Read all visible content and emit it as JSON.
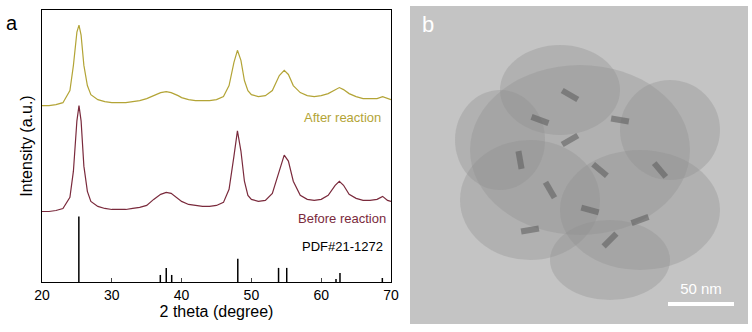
{
  "chart_data": {
    "type": "line",
    "panel": "a",
    "xlabel": "2 theta (degree)",
    "ylabel": "Intensity (a.u.)",
    "xlim": [
      20,
      70
    ],
    "xticks": [
      20,
      30,
      40,
      50,
      60,
      70
    ],
    "ylim": [
      0,
      270
    ],
    "yticks": [],
    "tick_labels": "x",
    "series": [
      {
        "name": "After reaction",
        "color": "#b3a436",
        "type": "line",
        "x": [
          20,
          21,
          22,
          23,
          24,
          24.5,
          25,
          25.3,
          25.6,
          26,
          26.5,
          27,
          28,
          29,
          30,
          31,
          32,
          33,
          34,
          35,
          36,
          37,
          37.8,
          38.5,
          39.5,
          40,
          41,
          42,
          43,
          44,
          45,
          46,
          46.8,
          47.5,
          48,
          48.5,
          49,
          49.5,
          50,
          51,
          52,
          53,
          54,
          54.7,
          55.3,
          56,
          57,
          58,
          59,
          60,
          61,
          62,
          62.6,
          63.2,
          64,
          65,
          66,
          67,
          68,
          68.8,
          69.5,
          70
        ],
        "values": [
          175,
          175,
          176,
          178,
          190,
          215,
          248,
          255,
          245,
          215,
          195,
          186,
          181,
          179,
          178,
          178,
          178,
          179,
          180,
          182,
          185,
          188,
          189,
          188,
          185,
          183,
          181,
          180,
          180,
          180,
          181,
          184,
          195,
          218,
          230,
          220,
          200,
          190,
          186,
          184,
          185,
          190,
          205,
          210,
          206,
          195,
          188,
          185,
          184,
          185,
          187,
          191,
          193,
          191,
          187,
          184,
          182,
          182,
          182,
          184,
          182,
          181
        ]
      },
      {
        "name": "Before reaction",
        "color": "#7a2a3c",
        "type": "line",
        "x": [
          20,
          21,
          22,
          23,
          24,
          24.5,
          25,
          25.3,
          25.6,
          26,
          26.5,
          27,
          28,
          29,
          30,
          31,
          32,
          33,
          34,
          35,
          36,
          37,
          37.8,
          38.5,
          39.5,
          40,
          41,
          42,
          43,
          44,
          45,
          46,
          46.8,
          47.5,
          48,
          48.5,
          49,
          49.5,
          50,
          51,
          52,
          53,
          54,
          54.7,
          55.3,
          56,
          57,
          58,
          59,
          60,
          61,
          62,
          62.6,
          63.2,
          64,
          65,
          66,
          67,
          68,
          68.8,
          69.5,
          70
        ],
        "values": [
          70,
          70,
          71,
          73,
          84,
          110,
          160,
          175,
          160,
          115,
          90,
          80,
          75,
          73,
          72,
          72,
          72,
          73,
          74,
          76,
          82,
          87,
          89,
          88,
          83,
          80,
          77,
          76,
          75,
          75,
          76,
          79,
          92,
          125,
          150,
          130,
          100,
          86,
          82,
          80,
          81,
          88,
          110,
          126,
          120,
          100,
          86,
          82,
          81,
          82,
          86,
          96,
          100,
          96,
          87,
          83,
          81,
          81,
          82,
          85,
          81,
          80
        ]
      },
      {
        "name": "PDF#21-1272",
        "color": "#000000",
        "type": "stick",
        "x": [
          25.28,
          36.95,
          37.8,
          38.58,
          48.05,
          53.89,
          55.06,
          62.12,
          62.69,
          68.76
        ],
        "values": [
          65,
          7,
          14,
          7,
          23,
          14,
          14,
          3,
          9,
          4
        ]
      }
    ]
  },
  "image_panel": {
    "panel": "b",
    "scale_bar": "50 nm"
  }
}
